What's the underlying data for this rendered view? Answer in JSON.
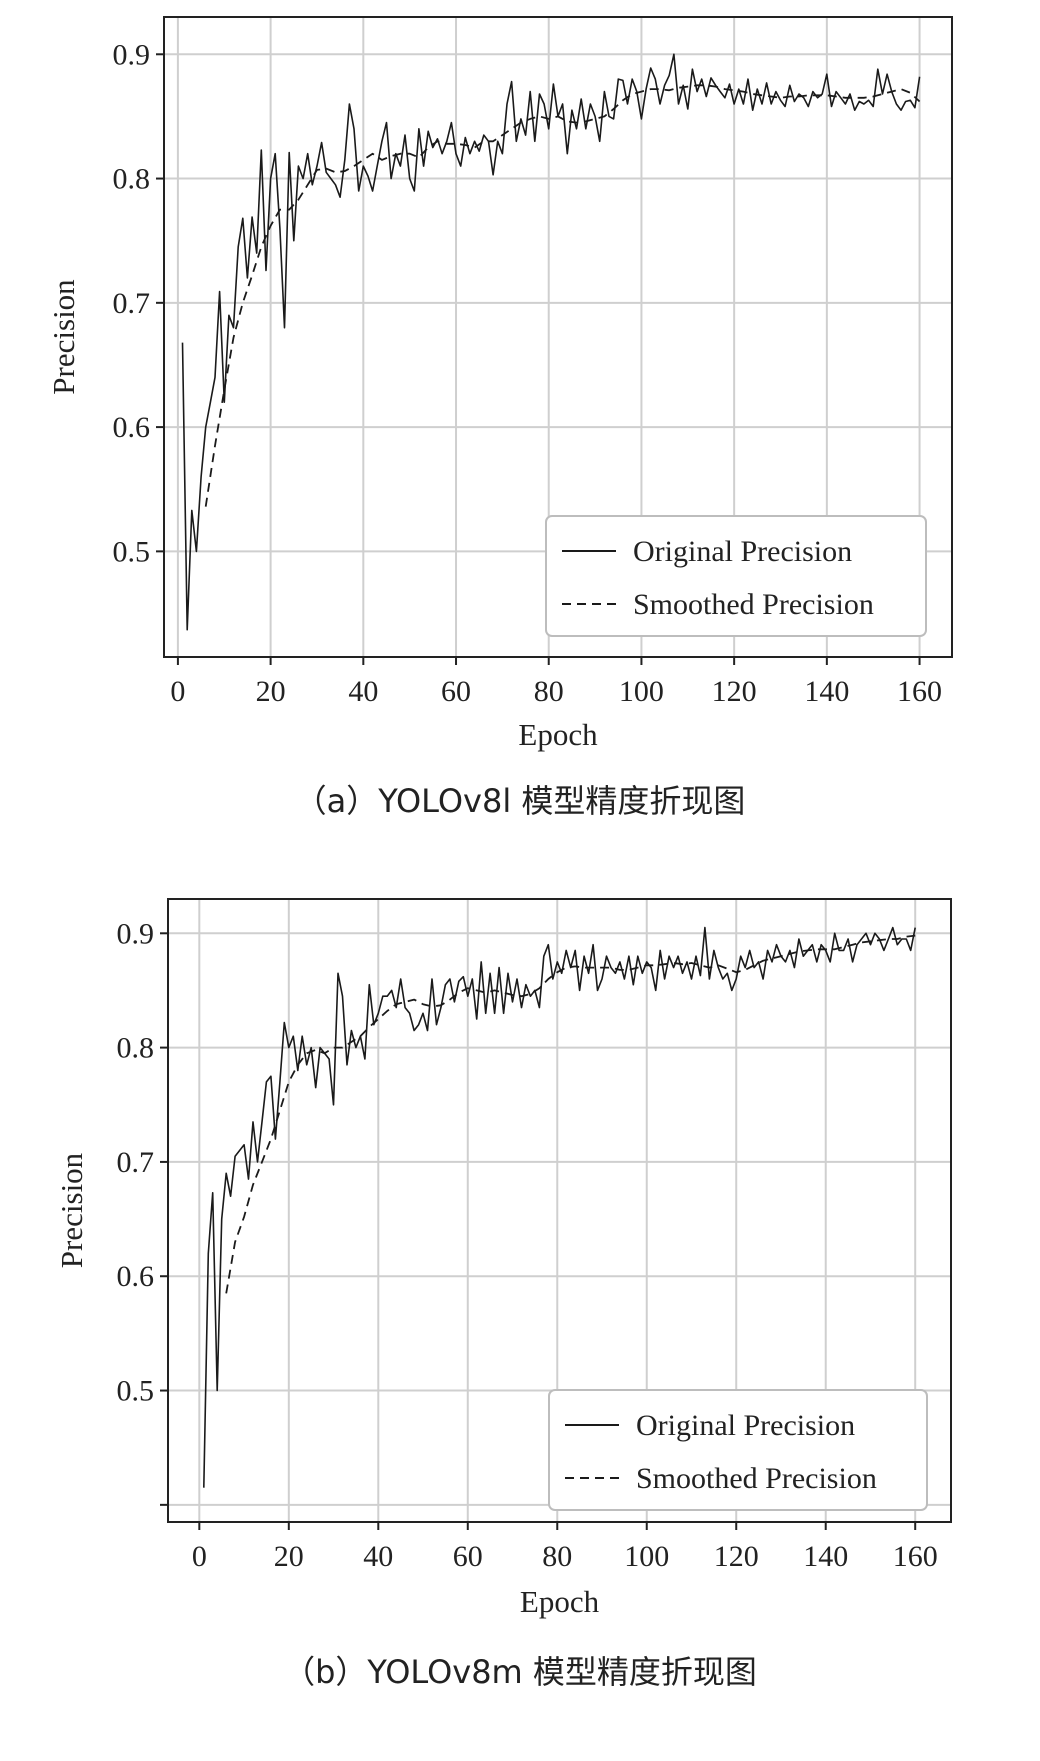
{
  "chart_data": [
    {
      "type": "line",
      "caption": "（a）YOLOv8l 模型精度折现图",
      "xlabel": "Epoch",
      "ylabel": "Precision",
      "xlim": [
        -3,
        167
      ],
      "ylim": [
        0.415,
        0.93
      ],
      "xticks": [
        0,
        20,
        40,
        60,
        80,
        100,
        120,
        140,
        160
      ],
      "yticks": [
        0.5,
        0.6,
        0.7,
        0.8,
        0.9
      ],
      "ytick_labels": [
        "0.5",
        "0.6",
        "0.7",
        "0.8",
        "0.9"
      ],
      "grid": true,
      "legend_position": "bottom-right",
      "series": [
        {
          "name": "Original Precision",
          "style": "solid",
          "x": [
            1,
            2,
            3,
            4,
            5,
            6,
            7,
            8,
            9,
            10,
            11,
            12,
            13,
            14,
            15,
            16,
            17,
            18,
            19,
            20,
            21,
            22,
            23,
            24,
            25,
            26,
            27,
            28,
            29,
            30,
            31,
            32,
            33,
            34,
            35,
            36,
            37,
            38,
            39,
            40,
            41,
            42,
            43,
            44,
            45,
            46,
            47,
            48,
            49,
            50,
            51,
            52,
            53,
            54,
            55,
            56,
            57,
            58,
            59,
            60,
            61,
            62,
            63,
            64,
            65,
            66,
            67,
            68,
            69,
            70,
            71,
            72,
            73,
            74,
            75,
            76,
            77,
            78,
            79,
            80,
            81,
            82,
            83,
            84,
            85,
            86,
            87,
            88,
            89,
            90,
            91,
            92,
            93,
            94,
            95,
            96,
            97,
            98,
            99,
            100,
            101,
            102,
            103,
            104,
            105,
            106,
            107,
            108,
            109,
            110,
            111,
            112,
            113,
            114,
            115,
            116,
            117,
            118,
            119,
            120,
            121,
            122,
            123,
            124,
            125,
            126,
            127,
            128,
            129,
            130,
            131,
            132,
            133,
            134,
            135,
            136,
            137,
            138,
            139,
            140,
            141,
            142,
            143,
            144,
            145,
            146,
            147,
            148,
            149,
            150,
            151,
            152,
            153,
            154,
            155,
            156,
            157,
            158,
            159,
            160
          ],
          "y": [
            0.668,
            0.437,
            0.533,
            0.5,
            0.56,
            0.6,
            0.62,
            0.64,
            0.709,
            0.62,
            0.69,
            0.68,
            0.745,
            0.768,
            0.72,
            0.769,
            0.74,
            0.823,
            0.726,
            0.8,
            0.82,
            0.76,
            0.68,
            0.821,
            0.75,
            0.81,
            0.8,
            0.82,
            0.795,
            0.81,
            0.829,
            0.805,
            0.8,
            0.795,
            0.785,
            0.815,
            0.86,
            0.84,
            0.79,
            0.81,
            0.802,
            0.79,
            0.81,
            0.83,
            0.845,
            0.8,
            0.82,
            0.81,
            0.835,
            0.8,
            0.79,
            0.84,
            0.81,
            0.838,
            0.825,
            0.832,
            0.82,
            0.83,
            0.845,
            0.82,
            0.81,
            0.833,
            0.82,
            0.83,
            0.822,
            0.835,
            0.83,
            0.803,
            0.83,
            0.82,
            0.86,
            0.878,
            0.83,
            0.848,
            0.835,
            0.87,
            0.83,
            0.868,
            0.86,
            0.84,
            0.876,
            0.85,
            0.86,
            0.82,
            0.855,
            0.84,
            0.864,
            0.84,
            0.86,
            0.85,
            0.83,
            0.87,
            0.85,
            0.848,
            0.88,
            0.879,
            0.86,
            0.88,
            0.87,
            0.848,
            0.872,
            0.889,
            0.88,
            0.86,
            0.875,
            0.883,
            0.9,
            0.86,
            0.875,
            0.856,
            0.888,
            0.87,
            0.88,
            0.866,
            0.881,
            0.875,
            0.87,
            0.865,
            0.876,
            0.86,
            0.872,
            0.86,
            0.88,
            0.855,
            0.872,
            0.86,
            0.877,
            0.86,
            0.87,
            0.863,
            0.858,
            0.875,
            0.862,
            0.868,
            0.865,
            0.858,
            0.87,
            0.865,
            0.868,
            0.884,
            0.858,
            0.87,
            0.865,
            0.86,
            0.868,
            0.855,
            0.862,
            0.86,
            0.863,
            0.858,
            0.888,
            0.868,
            0.884,
            0.87,
            0.86,
            0.855,
            0.862,
            0.863,
            0.857,
            0.882
          ]
        },
        {
          "name": "Smoothed Precision",
          "style": "dashed",
          "x": [
            6,
            8,
            10,
            12,
            14,
            16,
            18,
            20,
            22,
            24,
            26,
            28,
            30,
            32,
            34,
            36,
            38,
            40,
            42,
            44,
            46,
            48,
            50,
            52,
            54,
            56,
            58,
            60,
            62,
            64,
            66,
            68,
            70,
            72,
            74,
            76,
            78,
            80,
            82,
            84,
            86,
            88,
            90,
            92,
            94,
            96,
            98,
            100,
            102,
            104,
            106,
            108,
            110,
            112,
            114,
            116,
            118,
            120,
            122,
            124,
            126,
            128,
            130,
            132,
            134,
            136,
            138,
            140,
            142,
            144,
            146,
            148,
            150,
            152,
            154,
            156,
            158,
            160
          ],
          "y": [
            0.536,
            0.585,
            0.63,
            0.672,
            0.7,
            0.722,
            0.745,
            0.762,
            0.775,
            0.775,
            0.783,
            0.795,
            0.807,
            0.808,
            0.805,
            0.806,
            0.81,
            0.815,
            0.82,
            0.815,
            0.818,
            0.82,
            0.82,
            0.817,
            0.825,
            0.83,
            0.828,
            0.828,
            0.827,
            0.825,
            0.83,
            0.83,
            0.835,
            0.84,
            0.845,
            0.848,
            0.85,
            0.848,
            0.85,
            0.846,
            0.845,
            0.846,
            0.848,
            0.85,
            0.856,
            0.863,
            0.868,
            0.87,
            0.872,
            0.872,
            0.871,
            0.873,
            0.874,
            0.875,
            0.875,
            0.874,
            0.872,
            0.871,
            0.87,
            0.868,
            0.867,
            0.866,
            0.865,
            0.866,
            0.866,
            0.867,
            0.867,
            0.867,
            0.866,
            0.865,
            0.865,
            0.865,
            0.866,
            0.868,
            0.87,
            0.872,
            0.869,
            0.862
          ]
        }
      ]
    },
    {
      "type": "line",
      "caption": "（b）YOLOv8m 模型精度折现图",
      "xlabel": "Epoch",
      "ylabel": "Precision",
      "xlim": [
        -7,
        168
      ],
      "ylim": [
        0.385,
        0.93
      ],
      "xticks": [
        0,
        20,
        40,
        60,
        80,
        100,
        120,
        140,
        160
      ],
      "yticks": [
        0.4,
        0.5,
        0.6,
        0.7,
        0.8,
        0.9
      ],
      "ytick_labels": [
        "",
        "0.5",
        "0.6",
        "0.7",
        "0.8",
        "0.9"
      ],
      "grid": true,
      "legend_position": "bottom-right",
      "series": [
        {
          "name": "Original Precision",
          "style": "solid",
          "x": [
            1,
            2,
            3,
            4,
            5,
            6,
            7,
            8,
            9,
            10,
            11,
            12,
            13,
            14,
            15,
            16,
            17,
            18,
            19,
            20,
            21,
            22,
            23,
            24,
            25,
            26,
            27,
            28,
            29,
            30,
            31,
            32,
            33,
            34,
            35,
            36,
            37,
            38,
            39,
            40,
            41,
            42,
            43,
            44,
            45,
            46,
            47,
            48,
            49,
            50,
            51,
            52,
            53,
            54,
            55,
            56,
            57,
            58,
            59,
            60,
            61,
            62,
            63,
            64,
            65,
            66,
            67,
            68,
            69,
            70,
            71,
            72,
            73,
            74,
            75,
            76,
            77,
            78,
            79,
            80,
            81,
            82,
            83,
            84,
            85,
            86,
            87,
            88,
            89,
            90,
            91,
            92,
            93,
            94,
            95,
            96,
            97,
            98,
            99,
            100,
            101,
            102,
            103,
            104,
            105,
            106,
            107,
            108,
            109,
            110,
            111,
            112,
            113,
            114,
            115,
            116,
            117,
            118,
            119,
            120,
            121,
            122,
            123,
            124,
            125,
            126,
            127,
            128,
            129,
            130,
            131,
            132,
            133,
            134,
            135,
            136,
            137,
            138,
            139,
            140,
            141,
            142,
            143,
            144,
            145,
            146,
            147,
            148,
            149,
            150,
            151,
            152,
            153,
            154,
            155,
            156,
            157,
            158,
            159,
            160
          ],
          "y": [
            0.415,
            0.62,
            0.673,
            0.5,
            0.65,
            0.69,
            0.67,
            0.705,
            0.71,
            0.715,
            0.685,
            0.735,
            0.7,
            0.735,
            0.77,
            0.775,
            0.72,
            0.77,
            0.822,
            0.8,
            0.81,
            0.78,
            0.81,
            0.785,
            0.8,
            0.765,
            0.8,
            0.795,
            0.79,
            0.75,
            0.865,
            0.845,
            0.785,
            0.815,
            0.8,
            0.81,
            0.79,
            0.855,
            0.82,
            0.83,
            0.845,
            0.845,
            0.85,
            0.835,
            0.86,
            0.835,
            0.83,
            0.815,
            0.82,
            0.83,
            0.815,
            0.86,
            0.82,
            0.835,
            0.855,
            0.86,
            0.84,
            0.858,
            0.862,
            0.845,
            0.86,
            0.825,
            0.875,
            0.83,
            0.865,
            0.83,
            0.87,
            0.83,
            0.865,
            0.84,
            0.86,
            0.835,
            0.855,
            0.845,
            0.85,
            0.835,
            0.88,
            0.89,
            0.86,
            0.875,
            0.865,
            0.885,
            0.87,
            0.885,
            0.85,
            0.88,
            0.865,
            0.89,
            0.85,
            0.86,
            0.88,
            0.87,
            0.865,
            0.875,
            0.86,
            0.88,
            0.855,
            0.88,
            0.865,
            0.875,
            0.87,
            0.85,
            0.885,
            0.86,
            0.88,
            0.87,
            0.88,
            0.865,
            0.875,
            0.86,
            0.88,
            0.863,
            0.905,
            0.86,
            0.885,
            0.87,
            0.86,
            0.865,
            0.85,
            0.86,
            0.88,
            0.87,
            0.885,
            0.87,
            0.875,
            0.86,
            0.885,
            0.875,
            0.89,
            0.88,
            0.875,
            0.885,
            0.87,
            0.895,
            0.88,
            0.885,
            0.89,
            0.875,
            0.89,
            0.885,
            0.875,
            0.9,
            0.885,
            0.885,
            0.895,
            0.875,
            0.89,
            0.895,
            0.9,
            0.89,
            0.9,
            0.895,
            0.885,
            0.895,
            0.905,
            0.89,
            0.895,
            0.895,
            0.885,
            0.905
          ]
        },
        {
          "name": "Smoothed Precision",
          "style": "dashed",
          "x": [
            6,
            8,
            10,
            12,
            14,
            16,
            18,
            20,
            22,
            24,
            26,
            28,
            30,
            32,
            34,
            36,
            38,
            40,
            42,
            44,
            46,
            48,
            50,
            52,
            54,
            56,
            58,
            60,
            62,
            64,
            66,
            68,
            70,
            72,
            74,
            76,
            78,
            80,
            82,
            84,
            86,
            88,
            90,
            92,
            94,
            96,
            98,
            100,
            102,
            104,
            106,
            108,
            110,
            112,
            114,
            116,
            118,
            120,
            122,
            124,
            126,
            128,
            130,
            132,
            134,
            136,
            138,
            140,
            142,
            144,
            146,
            148,
            150,
            152,
            154,
            156,
            158,
            160
          ],
          "y": [
            0.585,
            0.63,
            0.652,
            0.68,
            0.7,
            0.72,
            0.745,
            0.77,
            0.785,
            0.795,
            0.798,
            0.795,
            0.8,
            0.8,
            0.805,
            0.81,
            0.818,
            0.825,
            0.832,
            0.838,
            0.84,
            0.842,
            0.838,
            0.836,
            0.837,
            0.842,
            0.848,
            0.852,
            0.85,
            0.848,
            0.85,
            0.848,
            0.846,
            0.845,
            0.847,
            0.852,
            0.86,
            0.866,
            0.87,
            0.871,
            0.87,
            0.87,
            0.87,
            0.87,
            0.868,
            0.868,
            0.87,
            0.872,
            0.872,
            0.873,
            0.874,
            0.873,
            0.874,
            0.872,
            0.87,
            0.872,
            0.869,
            0.866,
            0.868,
            0.872,
            0.876,
            0.878,
            0.88,
            0.882,
            0.884,
            0.885,
            0.886,
            0.886,
            0.886,
            0.888,
            0.89,
            0.892,
            0.893,
            0.894,
            0.895,
            0.895,
            0.897,
            0.898
          ]
        }
      ]
    }
  ]
}
